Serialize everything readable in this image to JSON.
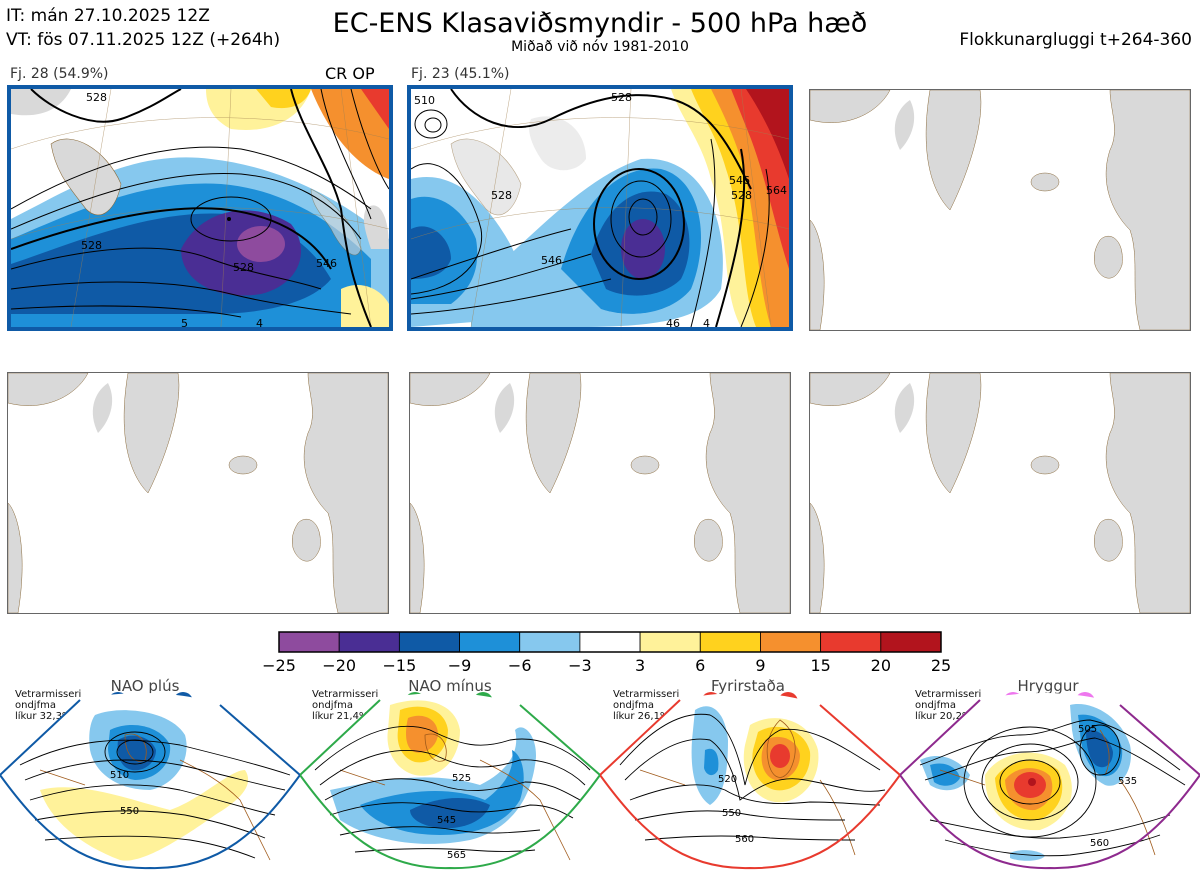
{
  "header": {
    "it": "IT: mán 27.10.2025 12Z",
    "vt": "VT: fös 07.11.2025 12Z  (+264h)",
    "title": "EC-ENS Klasaviðsmyndir - 500 hPa hæð",
    "subtitle": "Miðað við nóv 1981-2010",
    "window": "Flokkunargluggi t+264-360"
  },
  "panels": [
    {
      "label": "Fj. 28 (54.9%)",
      "tag": "CR OP",
      "active": true,
      "contours": [
        "528",
        "528",
        "528",
        "546",
        "5",
        "4"
      ]
    },
    {
      "label": "Fj. 23 (45.1%)",
      "tag": "",
      "active": true,
      "contours": [
        "510",
        "528",
        "528",
        "546",
        "528",
        "546",
        "564",
        "46",
        "4"
      ]
    },
    {
      "label": "",
      "tag": "",
      "active": false
    },
    {
      "label": "",
      "tag": "",
      "active": false
    },
    {
      "label": "",
      "tag": "",
      "active": false
    },
    {
      "label": "",
      "tag": "",
      "active": false
    }
  ],
  "colorbar": {
    "ticks": [
      "−25",
      "−20",
      "−15",
      "−9",
      "−6",
      "−3",
      "3",
      "6",
      "9",
      "15",
      "20",
      "25"
    ],
    "colors": [
      "#8e4b9e",
      "#4a2e94",
      "#0f5aa6",
      "#1e90d8",
      "#86c8ee",
      "#ffffff",
      "#fff29a",
      "#ffd21e",
      "#f5902e",
      "#e83a2e",
      "#b2141d"
    ]
  },
  "regimes": [
    {
      "title": "NAO plús",
      "note": [
        "Vetrarmisseri",
        "ondjfma",
        "líkur 32,3%"
      ],
      "frame": "#0f5aa6",
      "dot": "#0f5aa6",
      "contours": [
        "510",
        "550"
      ]
    },
    {
      "title": "NAO mínus",
      "note": [
        "Vetrarmisseri",
        "ondjfma",
        "líkur 21,4%"
      ],
      "frame": "#2eaa4a",
      "dot": "#2eaa4a",
      "contours": [
        "525",
        "545",
        "565"
      ]
    },
    {
      "title": "Fyrirstaða",
      "note": [
        "Vetrarmisseri",
        "ondjfma",
        "líkur 26,1%"
      ],
      "frame": "#e83a2e",
      "dot": "#e83a2e",
      "contours": [
        "520",
        "550",
        "560"
      ]
    },
    {
      "title": "Hryggur",
      "note": [
        "Vetrarmisseri",
        "ondjfma",
        "líkur 20,2%"
      ],
      "frame": "#8e2a8e",
      "dot": "#ee77ee",
      "contours": [
        "505",
        "535",
        "560"
      ]
    }
  ]
}
